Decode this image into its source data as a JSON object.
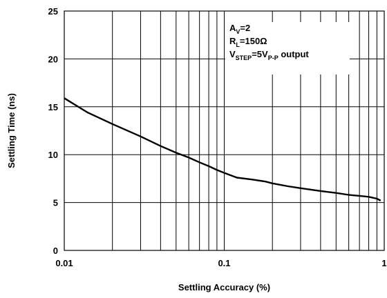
{
  "chart_data": {
    "type": "line",
    "title": "",
    "xlabel": "Settling Accuracy (%)",
    "ylabel": "Settling Time (ns)",
    "x_scale": "log",
    "xlim": [
      0.01,
      1
    ],
    "ylim": [
      0,
      25
    ],
    "x_ticks": [
      {
        "value": 0.01,
        "label": "0.01"
      },
      {
        "value": 0.1,
        "label": "0.1"
      },
      {
        "value": 1,
        "label": "1"
      }
    ],
    "y_ticks": [
      {
        "value": 0,
        "label": "0"
      },
      {
        "value": 5,
        "label": "5"
      },
      {
        "value": 10,
        "label": "10"
      },
      {
        "value": 15,
        "label": "15"
      },
      {
        "value": 20,
        "label": "20"
      },
      {
        "value": 25,
        "label": "25"
      }
    ],
    "grid": true,
    "legend": "none",
    "series": [
      {
        "x": [
          0.01,
          0.014,
          0.02,
          0.03,
          0.04,
          0.05,
          0.06,
          0.07,
          0.08,
          0.09,
          0.1,
          0.12,
          0.15,
          0.18,
          0.2,
          0.25,
          0.3,
          0.4,
          0.5,
          0.6,
          0.7,
          0.8,
          0.9,
          0.95
        ],
        "y": [
          15.9,
          14.4,
          13.2,
          11.9,
          10.9,
          10.2,
          9.7,
          9.2,
          8.8,
          8.4,
          8.1,
          7.6,
          7.4,
          7.2,
          7.0,
          6.7,
          6.5,
          6.2,
          6.0,
          5.8,
          5.7,
          5.6,
          5.4,
          5.2
        ],
        "color": "#000000"
      }
    ],
    "annotation": {
      "lines": [
        [
          {
            "t": "A"
          },
          {
            "t": "V",
            "sub": true
          },
          {
            "t": "=2"
          }
        ],
        [
          {
            "t": "R"
          },
          {
            "t": "L",
            "sub": true
          },
          {
            "t": "=150Ω"
          }
        ],
        [
          {
            "t": "V"
          },
          {
            "t": "STEP",
            "sub": true
          },
          {
            "t": "=5V"
          },
          {
            "t": "P-P",
            "sub": true
          },
          {
            "t": " output"
          }
        ]
      ]
    }
  }
}
